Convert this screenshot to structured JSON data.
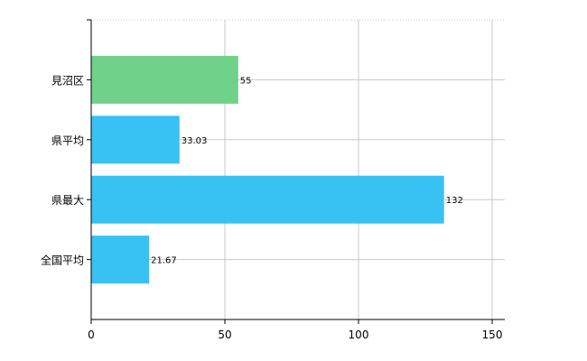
{
  "chart_data": {
    "type": "bar",
    "orientation": "horizontal",
    "categories": [
      "見沼区",
      "県平均",
      "県最大",
      "全国平均"
    ],
    "values": [
      55,
      33.03,
      132,
      21.67
    ],
    "value_labels": [
      "55",
      "33.03",
      "132",
      "21.67"
    ],
    "bar_colors": [
      "#6fd18a",
      "#38c2f4",
      "#38c2f4",
      "#38c2f4"
    ],
    "xlim": [
      0,
      160
    ],
    "x_ticks": [
      0,
      50,
      100,
      150
    ],
    "x_tick_labels": [
      "0",
      "50",
      "100",
      "150"
    ],
    "grid": true,
    "legend": "none"
  }
}
